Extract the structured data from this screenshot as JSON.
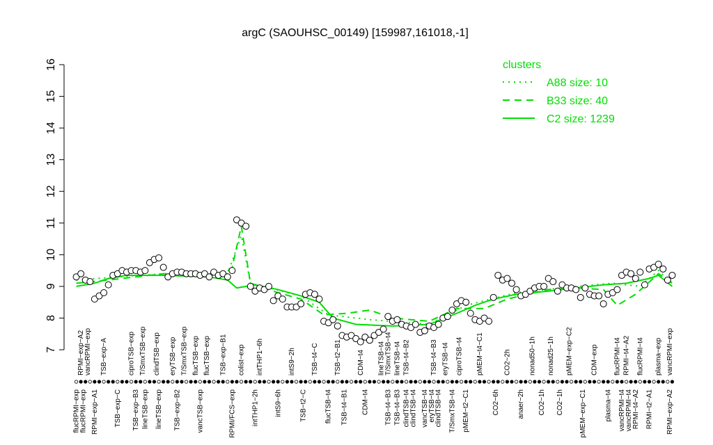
{
  "chart_data": {
    "type": "scatter",
    "title": "argC (SAOUHSC_00149) [159987,161018,-1]",
    "ylim": [
      7,
      16
    ],
    "yticks": [
      7,
      8,
      9,
      10,
      11,
      12,
      13,
      14,
      15,
      16
    ],
    "xlim": [
      0,
      132
    ],
    "point_color": "#000000",
    "points": [
      9.3,
      9.4,
      9.2,
      9.15,
      8.6,
      8.7,
      8.8,
      9.05,
      9.35,
      9.4,
      9.5,
      9.45,
      9.5,
      9.5,
      9.45,
      9.5,
      9.75,
      9.85,
      9.9,
      9.6,
      9.3,
      9.4,
      9.45,
      9.45,
      9.4,
      9.4,
      9.4,
      9.35,
      9.4,
      9.3,
      9.45,
      9.35,
      9.4,
      9.3,
      9.5,
      11.1,
      11.0,
      10.9,
      9.0,
      8.85,
      8.95,
      8.9,
      9.0,
      8.55,
      8.7,
      8.6,
      8.35,
      8.35,
      8.35,
      8.45,
      8.75,
      8.8,
      8.75,
      8.6,
      7.9,
      7.85,
      7.95,
      7.75,
      7.45,
      7.4,
      7.45,
      7.35,
      7.25,
      7.4,
      7.3,
      7.45,
      7.55,
      7.65,
      8.05,
      7.9,
      7.95,
      7.8,
      7.75,
      7.7,
      7.8,
      7.55,
      7.6,
      7.75,
      7.7,
      7.8,
      8.0,
      8.05,
      8.25,
      8.45,
      8.55,
      8.5,
      8.15,
      7.95,
      7.9,
      8.0,
      7.9,
      8.65,
      9.35,
      9.2,
      9.25,
      9.1,
      8.9,
      8.7,
      8.75,
      8.85,
      8.95,
      9.0,
      9.0,
      9.25,
      9.15,
      8.85,
      9.05,
      8.95,
      8.95,
      8.9,
      8.65,
      8.95,
      8.75,
      8.7,
      8.7,
      8.45,
      8.75,
      8.8,
      8.9,
      9.35,
      9.45,
      9.4,
      9.25,
      9.45,
      9.05,
      9.55,
      9.6,
      9.7,
      9.55,
      9.2,
      9.35
    ],
    "legend_title": "clusters",
    "series": [
      {
        "name": "A88 size: 10",
        "color": "#00dd00",
        "linestyle": "dotted",
        "x": [
          1,
          10,
          20,
          34,
          37,
          39,
          50,
          56,
          65,
          78,
          86,
          97,
          110,
          118,
          124,
          128,
          131
        ],
        "values": [
          9.2,
          9.3,
          9.4,
          9.4,
          10.6,
          9.1,
          8.7,
          8.1,
          7.95,
          7.8,
          8.4,
          8.8,
          9.0,
          9.1,
          9.0,
          9.5,
          9.1
        ]
      },
      {
        "name": "B33 size: 40",
        "color": "#00dd00",
        "linestyle": "dashed",
        "x": [
          1,
          8,
          20,
          33,
          35,
          37,
          39,
          45,
          50,
          55,
          60,
          65,
          70,
          78,
          84,
          90,
          95,
          104,
          110,
          116,
          119,
          123,
          128,
          131
        ],
        "values": [
          9.1,
          9.2,
          9.4,
          9.35,
          9.6,
          10.9,
          9.1,
          8.8,
          8.6,
          8.1,
          8.15,
          8.25,
          8.0,
          7.9,
          8.3,
          8.3,
          8.6,
          8.9,
          8.95,
          8.9,
          8.4,
          8.75,
          9.4,
          9.1
        ]
      },
      {
        "name": "C2 size: 1239",
        "color": "#00dd00",
        "linestyle": "solid",
        "x": [
          1,
          5,
          8,
          12,
          20,
          30,
          34,
          36,
          40,
          45,
          50,
          54,
          57,
          62,
          70,
          78,
          84,
          88,
          92,
          97,
          104,
          110,
          116,
          121,
          126,
          128,
          131
        ],
        "values": [
          9.0,
          9.1,
          9.25,
          9.35,
          9.35,
          9.3,
          9.2,
          8.95,
          9.05,
          8.9,
          8.7,
          8.5,
          8.0,
          7.8,
          7.75,
          7.8,
          8.15,
          8.4,
          8.6,
          8.75,
          8.85,
          8.95,
          9.05,
          9.1,
          9.25,
          9.35,
          9.0
        ]
      }
    ],
    "top_labels": {
      "x": [
        2,
        3.5,
        7,
        13,
        15.5,
        18.5,
        22,
        24.5,
        27,
        29.5,
        33,
        37,
        41,
        48,
        53,
        58,
        63,
        67.5,
        69,
        71,
        73,
        79,
        81.5,
        84.5,
        89,
        95,
        100.5,
        104.5,
        108.5,
        114,
        119,
        121,
        124,
        128,
        130.5
      ],
      "labels": [
        "RPMI−exp−A2",
        "vancRPMI−exp",
        "TSB−exp−A",
        "ciproTSB−exp",
        "T/SmxTSB−exp",
        "clindTSB−exp",
        "eryTSB−exp",
        "T/SmxTSB−exp",
        "flucTSB−exp",
        "flucTSB−exp",
        "TSB−exp−B1",
        "colist−exp",
        "intTHP1−6h",
        "intS9−2h",
        "TSB−t4−C",
        "TSB−t2−B1",
        "CDM−t4",
        "lineTSB−t4",
        "T/SmxTSB−t4",
        "lineTSB−t4",
        "TSB−t4−B2",
        "TSB−t4−B3",
        "eryTSB−t4",
        "ciproTSB−t4",
        "pMEM−t4−C1",
        "CO2−2h",
        "nonad50−1h",
        "nonad25−1h",
        "pMEM−exp−C2",
        "CDM−exp",
        "flucRPMI−t4",
        "RPMI−t4−A2",
        "flucRPMI−t4",
        "plasma−exp",
        "vancRPMI−exp"
      ]
    },
    "bottom_labels": {
      "x": [
        1,
        2.5,
        5,
        10,
        14,
        16,
        19,
        23,
        28,
        35,
        40,
        45,
        50.5,
        56,
        59.5,
        64,
        69,
        71,
        73,
        74.5,
        77,
        78.5,
        80,
        83,
        86,
        92.5,
        98,
        102.5,
        106.5,
        111.5,
        117,
        120,
        121.5,
        123,
        126,
        130.5
      ],
      "labels": [
        "flucRPMI−exp",
        "flucRPMI−exp",
        "RPMI−exp−A1",
        "TSB−exp−C",
        "TSB−exp−B3",
        "lineTSB−exp",
        "lineTSB−exp",
        "TSB−exp−B2",
        "vancTSB−exp",
        "RPMI/FCS−exp",
        "intTHP1−2h",
        "intS9−6h",
        "TSB−t2−C",
        "flucTSB−t4",
        "TSB−t4−B1",
        "CDM−t4",
        "TSB−t4−B3",
        "TSB−t4−B3",
        "clindTSB−t4",
        "clindTSB−t4",
        "vancTSB−t4",
        "eryTSB−t4",
        "clindTSB−t4",
        "T/SmxTSB−t4",
        "pMEM−t2−C1",
        "CO2−6h",
        "anaer−2h",
        "CO2−1h",
        "CO2−1h",
        "pMEM−exp−C1",
        "plasma−t4",
        "vancRPMI−t4",
        "vancRPMI−t4",
        "RPMI−t4−A2",
        "RPMI−t2−A1",
        "RPMI−exp−A2"
      ]
    }
  }
}
